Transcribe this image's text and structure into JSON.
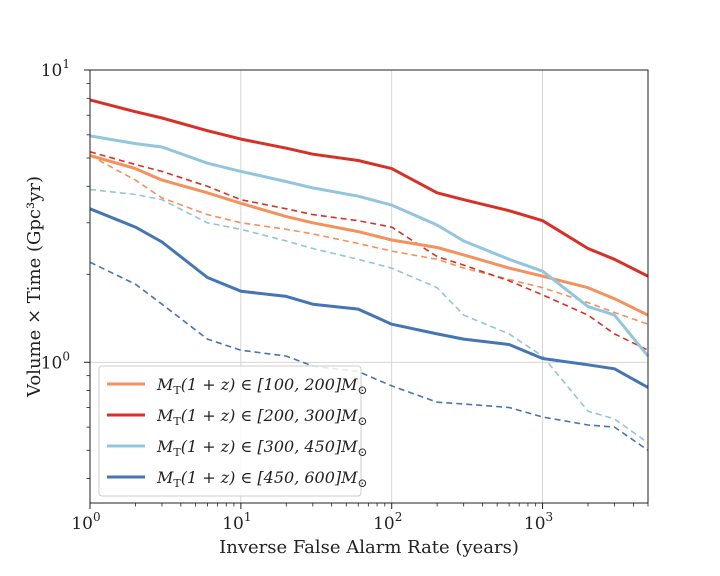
{
  "chart_data": {
    "type": "line",
    "title": "",
    "xlabel": "Inverse False Alarm Rate (years)",
    "ylabel": "Volume × Time (Gpc³yr)",
    "xscale": "log",
    "yscale": "log",
    "xlim": [
      1,
      5000
    ],
    "ylim": [
      0.33,
      10
    ],
    "grid": true,
    "legend_position": "lower-left",
    "x_tick_labels": [
      "10",
      "10",
      "10",
      "10"
    ],
    "x_tick_exponents": [
      "0",
      "1",
      "2",
      "3"
    ],
    "y_tick_labels": [
      "10",
      "10"
    ],
    "y_tick_exponents": [
      "0",
      "1"
    ],
    "x": [
      1,
      2,
      3,
      6,
      10,
      20,
      30,
      60,
      100,
      200,
      300,
      600,
      1000,
      2000,
      3000,
      5000
    ],
    "series": [
      {
        "name": "M_T(1+z) ∈ [100,200] M_⊙",
        "legend_main": "M",
        "legend_sub": "T",
        "legend_rest": "(1 + z) ∈ [100, 200]M",
        "legend_sun": "⊙",
        "color": "#f4915c",
        "solid": [
          5.1,
          4.6,
          4.2,
          3.8,
          3.5,
          3.15,
          3.0,
          2.8,
          2.62,
          2.47,
          2.33,
          2.1,
          1.97,
          1.8,
          1.65,
          1.45
        ],
        "dashed": [
          5.1,
          4.2,
          3.65,
          3.2,
          3.0,
          2.85,
          2.75,
          2.55,
          2.4,
          2.25,
          2.1,
          1.92,
          1.8,
          1.6,
          1.48,
          1.35
        ]
      },
      {
        "name": "M_T(1+z) ∈ [200,300] M_⊙",
        "legend_main": "M",
        "legend_sub": "T",
        "legend_rest": "(1 + z) ∈ [200, 300]M",
        "legend_sun": "⊙",
        "color": "#d73027",
        "solid": [
          7.9,
          7.2,
          6.85,
          6.2,
          5.8,
          5.4,
          5.15,
          4.9,
          4.6,
          3.8,
          3.6,
          3.3,
          3.05,
          2.45,
          2.25,
          1.97
        ],
        "dashed": [
          5.25,
          4.75,
          4.5,
          4.0,
          3.6,
          3.35,
          3.2,
          3.05,
          2.9,
          2.3,
          2.15,
          1.9,
          1.7,
          1.45,
          1.25,
          1.1
        ]
      },
      {
        "name": "M_T(1+z) ∈ [300,450] M_⊙",
        "legend_main": "M",
        "legend_sub": "T",
        "legend_rest": "(1 + z) ∈ [300, 450]M",
        "legend_sun": "⊙",
        "color": "#92c5de",
        "solid": [
          5.95,
          5.6,
          5.45,
          4.8,
          4.5,
          4.15,
          3.95,
          3.7,
          3.45,
          2.95,
          2.6,
          2.25,
          2.05,
          1.55,
          1.45,
          1.05
        ],
        "dashed": [
          3.9,
          3.75,
          3.6,
          3.0,
          2.85,
          2.6,
          2.45,
          2.25,
          2.1,
          1.8,
          1.45,
          1.25,
          1.05,
          0.68,
          0.64,
          0.53
        ]
      },
      {
        "name": "M_T(1+z) ∈ [450,600] M_⊙",
        "legend_main": "M",
        "legend_sub": "T",
        "legend_rest": "(1 + z) ∈ [450, 600]M",
        "legend_sun": "⊙",
        "color": "#4575b4",
        "solid": [
          3.35,
          2.9,
          2.58,
          1.95,
          1.75,
          1.68,
          1.58,
          1.52,
          1.35,
          1.25,
          1.2,
          1.15,
          1.03,
          0.98,
          0.95,
          0.82
        ],
        "dashed": [
          2.2,
          1.85,
          1.58,
          1.2,
          1.1,
          1.05,
          0.97,
          0.93,
          0.83,
          0.73,
          0.72,
          0.7,
          0.65,
          0.61,
          0.6,
          0.5
        ]
      }
    ]
  }
}
